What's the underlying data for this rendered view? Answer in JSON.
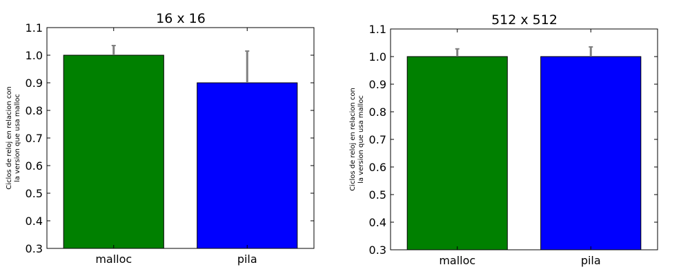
{
  "chart_data": [
    {
      "type": "bar",
      "title": "16 x 16",
      "ylabel": [
        "Ciclos de reloj en relacion con",
        "la version que usa malloc"
      ],
      "categories": [
        "malloc",
        "pila"
      ],
      "values": [
        1.0,
        0.9
      ],
      "errors": [
        0.035,
        0.115
      ],
      "colors": [
        "#008000",
        "#0000ff"
      ],
      "ylim": [
        0.3,
        1.1
      ],
      "yticks": [
        "0.3",
        "0.4",
        "0.5",
        "0.6",
        "0.7",
        "0.8",
        "0.9",
        "1.0",
        "1.1"
      ]
    },
    {
      "type": "bar",
      "title": "512 x 512",
      "ylabel": [
        "Ciclos de reloj en relacion con",
        "la version que usa malloc"
      ],
      "categories": [
        "malloc",
        "pila"
      ],
      "values": [
        1.0,
        1.0
      ],
      "errors": [
        0.028,
        0.035
      ],
      "colors": [
        "#008000",
        "#0000ff"
      ],
      "ylim": [
        0.3,
        1.1
      ],
      "yticks": [
        "0.3",
        "0.4",
        "0.5",
        "0.6",
        "0.7",
        "0.8",
        "0.9",
        "1.0",
        "1.1"
      ]
    }
  ]
}
